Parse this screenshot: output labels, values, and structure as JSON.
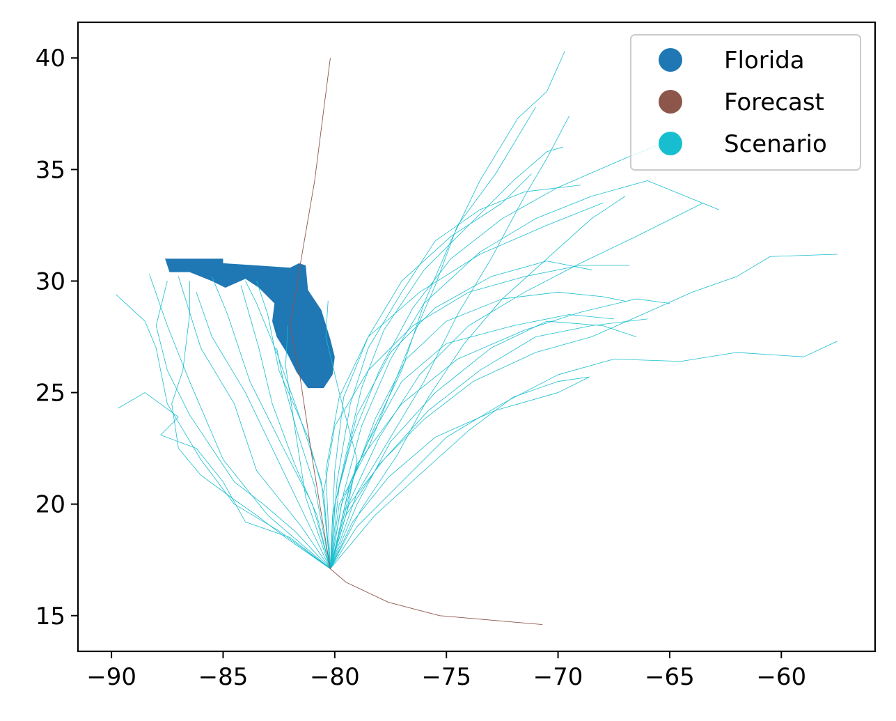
{
  "chart_data": {
    "type": "line",
    "title": "",
    "xlabel": "",
    "ylabel": "",
    "xlim": [
      -91.5,
      -55.8
    ],
    "ylim": [
      13.4,
      41.6
    ],
    "x_ticks": [
      -90,
      -85,
      -80,
      -75,
      -70,
      -65,
      -60
    ],
    "y_ticks": [
      15,
      20,
      25,
      30,
      35,
      40
    ],
    "x_tick_labels": [
      "−90",
      "−85",
      "−80",
      "−75",
      "−70",
      "−65",
      "−60"
    ],
    "y_tick_labels": [
      "15",
      "20",
      "25",
      "30",
      "35",
      "40"
    ],
    "legend": {
      "placement": "top-right",
      "entries": [
        {
          "label": "Florida",
          "color": "#1f77b4"
        },
        {
          "label": "Forecast",
          "color": "#8c564b"
        },
        {
          "label": "Scenario",
          "color": "#17becf"
        }
      ]
    },
    "florida_outline": [
      [
        -87.6,
        31.0
      ],
      [
        -85.0,
        31.0
      ],
      [
        -85.0,
        30.8
      ],
      [
        -82.0,
        30.6
      ],
      [
        -81.6,
        30.8
      ],
      [
        -81.3,
        30.7
      ],
      [
        -81.2,
        29.6
      ],
      [
        -80.6,
        28.7
      ],
      [
        -80.2,
        27.4
      ],
      [
        -80.0,
        26.6
      ],
      [
        -80.1,
        25.8
      ],
      [
        -80.5,
        25.2
      ],
      [
        -81.2,
        25.2
      ],
      [
        -81.7,
        25.9
      ],
      [
        -82.1,
        26.7
      ],
      [
        -82.6,
        27.5
      ],
      [
        -82.8,
        28.2
      ],
      [
        -82.7,
        29.0
      ],
      [
        -83.4,
        29.7
      ],
      [
        -84.0,
        30.1
      ],
      [
        -84.9,
        29.7
      ],
      [
        -85.5,
        30.0
      ],
      [
        -86.5,
        30.4
      ],
      [
        -87.4,
        30.4
      ],
      [
        -87.6,
        31.0
      ]
    ],
    "series": [
      {
        "name": "Forecast",
        "color": "#8c564b",
        "points": [
          [
            -70.7,
            14.6
          ],
          [
            -75.3,
            15.0
          ],
          [
            -77.6,
            15.6
          ],
          [
            -79.5,
            16.5
          ],
          [
            -80.2,
            17.1
          ],
          [
            -81.0,
            22.0
          ],
          [
            -81.6,
            26.0
          ],
          [
            -82.0,
            28.0
          ],
          [
            -81.5,
            31.0
          ],
          [
            -80.9,
            34.5
          ],
          [
            -80.2,
            40.0
          ]
        ]
      }
    ],
    "scenario_tracks": [
      [
        [
          -80.2,
          17.1
        ],
        [
          -82.0,
          18.5
        ],
        [
          -84.0,
          19.2
        ],
        [
          -85.0,
          21.0
        ],
        [
          -86.2,
          22.5
        ],
        [
          -87.8,
          23.1
        ],
        [
          -87.0,
          23.9
        ],
        [
          -88.5,
          25.0
        ],
        [
          -89.7,
          24.3
        ]
      ],
      [
        [
          -80.2,
          17.1
        ],
        [
          -82.5,
          18.8
        ],
        [
          -84.5,
          20.0
        ],
        [
          -86.0,
          22.0
        ],
        [
          -87.5,
          24.5
        ],
        [
          -88.0,
          27.0
        ],
        [
          -88.5,
          28.2
        ],
        [
          -89.8,
          29.4
        ]
      ],
      [
        [
          -80.2,
          17.1
        ],
        [
          -83.0,
          19.5
        ],
        [
          -85.0,
          22.0
        ],
        [
          -86.5,
          25.5
        ],
        [
          -87.5,
          28.0
        ],
        [
          -88.3,
          30.3
        ]
      ],
      [
        [
          -80.2,
          17.1
        ],
        [
          -81.5,
          19.0
        ],
        [
          -83.5,
          21.5
        ],
        [
          -84.5,
          24.5
        ],
        [
          -86.0,
          27.0
        ],
        [
          -87.0,
          30.2
        ]
      ],
      [
        [
          -80.2,
          17.1
        ],
        [
          -81.0,
          20.0
        ],
        [
          -82.3,
          22.5
        ],
        [
          -83.8,
          25.5
        ],
        [
          -84.8,
          28.5
        ],
        [
          -85.5,
          30.2
        ]
      ],
      [
        [
          -80.2,
          17.1
        ],
        [
          -80.5,
          20.5
        ],
        [
          -81.2,
          23.0
        ],
        [
          -82.5,
          26.0
        ],
        [
          -83.0,
          28.5
        ],
        [
          -83.5,
          30.0
        ]
      ],
      [
        [
          -80.2,
          17.1
        ],
        [
          -80.8,
          19.5
        ],
        [
          -81.8,
          21.8
        ],
        [
          -82.8,
          24.5
        ],
        [
          -83.4,
          27.0
        ],
        [
          -84.2,
          29.8
        ]
      ],
      [
        [
          -80.2,
          17.1
        ],
        [
          -79.5,
          19.5
        ],
        [
          -79.0,
          22.0
        ],
        [
          -79.8,
          25.0
        ],
        [
          -80.4,
          27.5
        ],
        [
          -80.3,
          29.1
        ]
      ],
      [
        [
          -80.2,
          17.1
        ],
        [
          -81.3,
          20.3
        ],
        [
          -81.8,
          23.5
        ],
        [
          -82.2,
          26.2
        ],
        [
          -82.1,
          28.0
        ]
      ],
      [
        [
          -80.2,
          17.1
        ],
        [
          -79.3,
          21.0
        ],
        [
          -78.2,
          23.5
        ],
        [
          -77.0,
          26.0
        ],
        [
          -76.0,
          29.0
        ],
        [
          -74.8,
          31.8
        ],
        [
          -73.5,
          34.5
        ],
        [
          -71.8,
          37.3
        ],
        [
          -70.5,
          38.5
        ],
        [
          -69.7,
          40.3
        ]
      ],
      [
        [
          -80.2,
          17.1
        ],
        [
          -79.0,
          20.5
        ],
        [
          -77.5,
          23.0
        ],
        [
          -76.0,
          25.5
        ],
        [
          -74.5,
          28.5
        ],
        [
          -73.0,
          31.0
        ],
        [
          -71.5,
          33.8
        ],
        [
          -70.5,
          35.5
        ],
        [
          -69.5,
          37.4
        ]
      ],
      [
        [
          -80.2,
          17.1
        ],
        [
          -79.8,
          20.0
        ],
        [
          -78.5,
          22.5
        ],
        [
          -77.5,
          25.0
        ],
        [
          -76.5,
          27.5
        ],
        [
          -75.5,
          29.8
        ],
        [
          -74.5,
          32.5
        ],
        [
          -72.8,
          34.8
        ],
        [
          -71.0,
          37.8
        ]
      ],
      [
        [
          -80.2,
          17.1
        ],
        [
          -78.8,
          19.8
        ],
        [
          -77.2,
          22.2
        ],
        [
          -75.8,
          24.8
        ],
        [
          -74.2,
          27.2
        ],
        [
          -72.5,
          29.2
        ],
        [
          -70.5,
          31.0
        ],
        [
          -68.5,
          32.8
        ],
        [
          -67.0,
          33.8
        ]
      ],
      [
        [
          -80.2,
          17.1
        ],
        [
          -78.2,
          19.5
        ],
        [
          -76.0,
          21.5
        ],
        [
          -74.0,
          23.3
        ],
        [
          -72.0,
          24.8
        ],
        [
          -70.0,
          25.5
        ],
        [
          -68.6,
          25.7
        ]
      ],
      [
        [
          -80.2,
          17.1
        ],
        [
          -79.0,
          19.0
        ],
        [
          -77.0,
          21.0
        ],
        [
          -75.0,
          23.0
        ],
        [
          -72.5,
          24.5
        ],
        [
          -70.0,
          25.8
        ],
        [
          -67.5,
          26.5
        ],
        [
          -64.5,
          26.4
        ],
        [
          -62.0,
          26.8
        ],
        [
          -59.0,
          26.6
        ],
        [
          -57.5,
          27.3
        ]
      ],
      [
        [
          -80.2,
          17.1
        ],
        [
          -79.5,
          19.5
        ],
        [
          -78.0,
          21.8
        ],
        [
          -76.0,
          23.8
        ],
        [
          -73.8,
          25.5
        ],
        [
          -71.0,
          26.8
        ],
        [
          -68.5,
          27.5
        ],
        [
          -66.0,
          28.6
        ],
        [
          -64.0,
          29.5
        ],
        [
          -62.0,
          30.2
        ],
        [
          -60.5,
          31.1
        ],
        [
          -57.5,
          31.2
        ]
      ],
      [
        [
          -80.2,
          17.1
        ],
        [
          -79.0,
          20.0
        ],
        [
          -77.5,
          22.8
        ],
        [
          -75.5,
          25.0
        ],
        [
          -73.0,
          27.0
        ],
        [
          -70.5,
          28.2
        ],
        [
          -68.0,
          28.0
        ],
        [
          -66.5,
          27.5
        ]
      ],
      [
        [
          -80.2,
          17.1
        ],
        [
          -79.3,
          20.2
        ],
        [
          -78.0,
          23.0
        ],
        [
          -76.2,
          25.8
        ],
        [
          -74.0,
          28.0
        ],
        [
          -71.5,
          29.5
        ],
        [
          -69.0,
          30.8
        ],
        [
          -66.5,
          32.0
        ],
        [
          -63.5,
          33.5
        ]
      ],
      [
        [
          -80.2,
          17.1
        ],
        [
          -80.0,
          20.0
        ],
        [
          -79.2,
          23.0
        ],
        [
          -78.0,
          26.0
        ],
        [
          -76.5,
          28.8
        ],
        [
          -74.8,
          31.0
        ],
        [
          -72.5,
          32.8
        ],
        [
          -70.0,
          34.2
        ],
        [
          -67.0,
          35.5
        ],
        [
          -65.0,
          36.3
        ]
      ],
      [
        [
          -80.2,
          17.1
        ],
        [
          -79.6,
          20.5
        ],
        [
          -78.8,
          23.5
        ],
        [
          -77.5,
          26.5
        ],
        [
          -76.0,
          29.0
        ],
        [
          -73.5,
          31.3
        ],
        [
          -71.0,
          32.8
        ],
        [
          -68.5,
          33.8
        ],
        [
          -66.0,
          34.5
        ],
        [
          -62.8,
          33.2
        ]
      ],
      [
        [
          -80.2,
          17.1
        ],
        [
          -79.9,
          21.0
        ],
        [
          -79.3,
          24.5
        ],
        [
          -78.5,
          27.0
        ],
        [
          -77.0,
          29.5
        ],
        [
          -75.5,
          31.8
        ],
        [
          -73.5,
          33.2
        ],
        [
          -71.5,
          34.0
        ],
        [
          -69.0,
          34.3
        ]
      ],
      [
        [
          -80.2,
          17.1
        ],
        [
          -80.5,
          20.5
        ],
        [
          -80.0,
          23.5
        ],
        [
          -78.5,
          26.0
        ],
        [
          -76.5,
          28.0
        ],
        [
          -74.0,
          29.5
        ],
        [
          -71.5,
          30.2
        ],
        [
          -69.0,
          30.7
        ],
        [
          -66.8,
          30.7
        ]
      ],
      [
        [
          -80.2,
          17.1
        ],
        [
          -79.8,
          20.8
        ],
        [
          -79.0,
          24.0
        ],
        [
          -77.5,
          26.8
        ],
        [
          -75.5,
          28.8
        ],
        [
          -73.0,
          30.2
        ],
        [
          -70.5,
          30.9
        ],
        [
          -68.5,
          30.5
        ]
      ],
      [
        [
          -80.2,
          17.1
        ],
        [
          -79.5,
          19.8
        ],
        [
          -77.8,
          22.0
        ],
        [
          -75.8,
          24.2
        ],
        [
          -73.5,
          26.0
        ],
        [
          -71.0,
          27.5
        ],
        [
          -68.5,
          28.0
        ],
        [
          -66.0,
          28.3
        ]
      ],
      [
        [
          -80.2,
          17.1
        ],
        [
          -80.1,
          19.5
        ],
        [
          -79.5,
          22.2
        ],
        [
          -78.8,
          25.2
        ],
        [
          -77.8,
          27.8
        ],
        [
          -76.0,
          30.5
        ],
        [
          -74.0,
          32.5
        ],
        [
          -72.0,
          34.5
        ],
        [
          -70.5,
          35.8
        ],
        [
          -69.8,
          36.0
        ]
      ],
      [
        [
          -80.2,
          17.1
        ],
        [
          -80.4,
          21.5
        ],
        [
          -79.8,
          24.8
        ],
        [
          -78.5,
          27.5
        ],
        [
          -77.0,
          30.0
        ],
        [
          -74.8,
          32.0
        ],
        [
          -72.5,
          33.5
        ],
        [
          -71.2,
          34.8
        ]
      ],
      [
        [
          -80.2,
          17.1
        ],
        [
          -79.4,
          20.5
        ],
        [
          -78.2,
          23.8
        ],
        [
          -76.8,
          26.5
        ],
        [
          -75.0,
          28.2
        ],
        [
          -72.5,
          29.2
        ],
        [
          -70.0,
          29.5
        ],
        [
          -68.0,
          29.3
        ],
        [
          -67.0,
          29.1
        ]
      ],
      [
        [
          -80.2,
          17.1
        ],
        [
          -79.7,
          20.0
        ],
        [
          -78.5,
          22.8
        ],
        [
          -77.0,
          25.5
        ],
        [
          -75.0,
          27.2
        ],
        [
          -72.0,
          28.0
        ],
        [
          -69.5,
          28.5
        ],
        [
          -67.5,
          28.3
        ]
      ],
      [
        [
          -80.2,
          17.1
        ],
        [
          -79.2,
          19.2
        ],
        [
          -77.6,
          21.2
        ],
        [
          -75.5,
          23.0
        ],
        [
          -72.8,
          24.2
        ],
        [
          -70.0,
          25.0
        ],
        [
          -68.6,
          25.7
        ]
      ],
      [
        [
          -80.2,
          17.1
        ],
        [
          -81.8,
          18.8
        ],
        [
          -83.2,
          20.0
        ],
        [
          -84.5,
          21.0
        ],
        [
          -85.5,
          22.5
        ],
        [
          -86.5,
          24.0
        ],
        [
          -87.5,
          26.0
        ],
        [
          -88.0,
          28.0
        ],
        [
          -87.5,
          30.0
        ]
      ],
      [
        [
          -80.2,
          17.1
        ],
        [
          -82.2,
          18.5
        ],
        [
          -83.5,
          19.5
        ],
        [
          -84.5,
          20.2
        ],
        [
          -86.0,
          21.3
        ],
        [
          -87.0,
          22.5
        ],
        [
          -87.3,
          24.5
        ],
        [
          -86.8,
          26.0
        ],
        [
          -86.5,
          28.5
        ],
        [
          -86.5,
          30.0
        ]
      ],
      [
        [
          -80.2,
          17.1
        ],
        [
          -81.5,
          19.8
        ],
        [
          -82.8,
          22.5
        ],
        [
          -84.0,
          25.0
        ],
        [
          -85.5,
          27.5
        ],
        [
          -86.2,
          29.5
        ]
      ],
      [
        [
          -80.2,
          17.1
        ],
        [
          -80.6,
          21.0
        ],
        [
          -81.6,
          24.0
        ],
        [
          -82.6,
          26.8
        ],
        [
          -83.5,
          29.0
        ],
        [
          -84.0,
          30.0
        ]
      ],
      [
        [
          -80.2,
          17.1
        ],
        [
          -80.9,
          20.8
        ],
        [
          -81.7,
          23.3
        ],
        [
          -82.3,
          25.5
        ],
        [
          -82.6,
          27.0
        ]
      ],
      [
        [
          -80.2,
          17.1
        ],
        [
          -80.0,
          21.5
        ],
        [
          -79.6,
          24.8
        ],
        [
          -78.5,
          27.5
        ],
        [
          -76.2,
          29.5
        ],
        [
          -73.5,
          31.2
        ],
        [
          -70.5,
          32.5
        ],
        [
          -68.0,
          33.5
        ]
      ],
      [
        [
          -80.2,
          17.1
        ],
        [
          -79.0,
          21.8
        ],
        [
          -77.0,
          24.5
        ],
        [
          -74.5,
          26.5
        ],
        [
          -71.5,
          27.8
        ],
        [
          -69.0,
          28.6
        ],
        [
          -66.5,
          29.2
        ],
        [
          -65.0,
          29.0
        ]
      ]
    ]
  }
}
